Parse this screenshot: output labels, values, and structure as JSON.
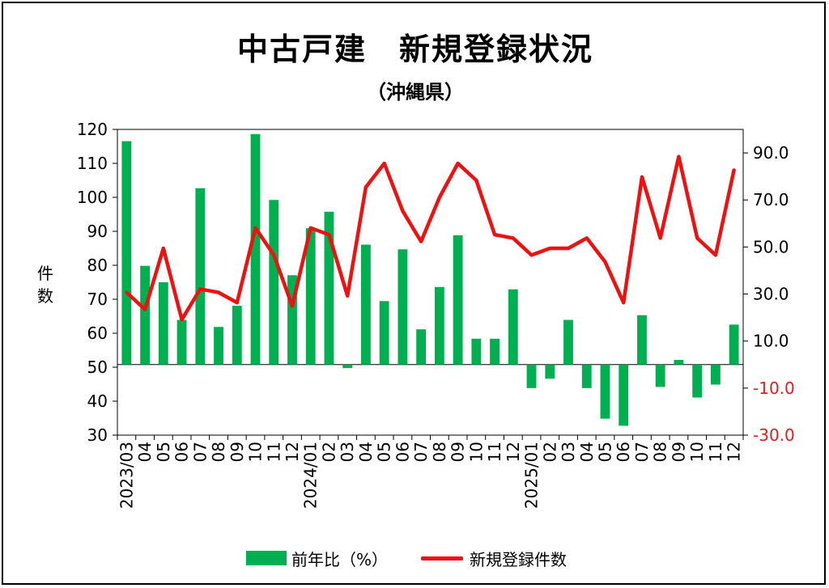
{
  "chart_data": {
    "type": "bar+line",
    "title": "中古戸建　新規登録状況",
    "subtitle": "（沖縄県）",
    "ylabel_left": "件数",
    "ylim_left": [
      30,
      120
    ],
    "yticks_left": [
      "30",
      "40",
      "50",
      "60",
      "70",
      "80",
      "90",
      "100",
      "110",
      "120"
    ],
    "ylim_right": [
      -30,
      100
    ],
    "yticks_right": [
      {
        "label": "-30.0",
        "value": -30,
        "color": "#e02020"
      },
      {
        "label": "-10.0",
        "value": -10,
        "color": "#e02020"
      },
      {
        "label": "10.0",
        "value": 10,
        "color": "#000000"
      },
      {
        "label": "30.0",
        "value": 30,
        "color": "#000000"
      },
      {
        "label": "50.0",
        "value": 50,
        "color": "#000000"
      },
      {
        "label": "70.0",
        "value": 70,
        "color": "#000000"
      },
      {
        "label": "90.0",
        "value": 90,
        "color": "#000000"
      }
    ],
    "categories": [
      "2023/03",
      "04",
      "05",
      "06",
      "07",
      "08",
      "09",
      "10",
      "11",
      "12",
      "2024/01",
      "02",
      "03",
      "04",
      "05",
      "06",
      "07",
      "08",
      "09",
      "10",
      "11",
      "12",
      "2025/01",
      "02",
      "03",
      "04",
      "05",
      "06",
      "07",
      "08",
      "09",
      "10",
      "11",
      "12"
    ],
    "series": [
      {
        "name": "前年比（%）",
        "type": "bar",
        "axis": "right",
        "color": "#00b050",
        "values": [
          95,
          42,
          35,
          19,
          75,
          16,
          25,
          98,
          70,
          38,
          58,
          65,
          -1.5,
          51,
          27,
          49,
          15,
          33,
          55,
          11,
          11,
          32,
          -10,
          -6,
          19,
          -10,
          -23,
          -26,
          21,
          -9.5,
          2,
          -14,
          -8.5,
          17
        ]
      },
      {
        "name": "新規登録件数",
        "type": "line",
        "axis": "left",
        "color": "#ee1111",
        "values": [
          72,
          67,
          85,
          64,
          73,
          72,
          69,
          91,
          83,
          68,
          91,
          89,
          71,
          103,
          110,
          96,
          87,
          100,
          110,
          105,
          89,
          88,
          83,
          85,
          85,
          88,
          81,
          69,
          106,
          88,
          112,
          88,
          83,
          108
        ]
      }
    ],
    "legend_position": "bottom"
  },
  "legend": {
    "bar_label": "前年比（%）",
    "line_label": "新規登録件数"
  }
}
